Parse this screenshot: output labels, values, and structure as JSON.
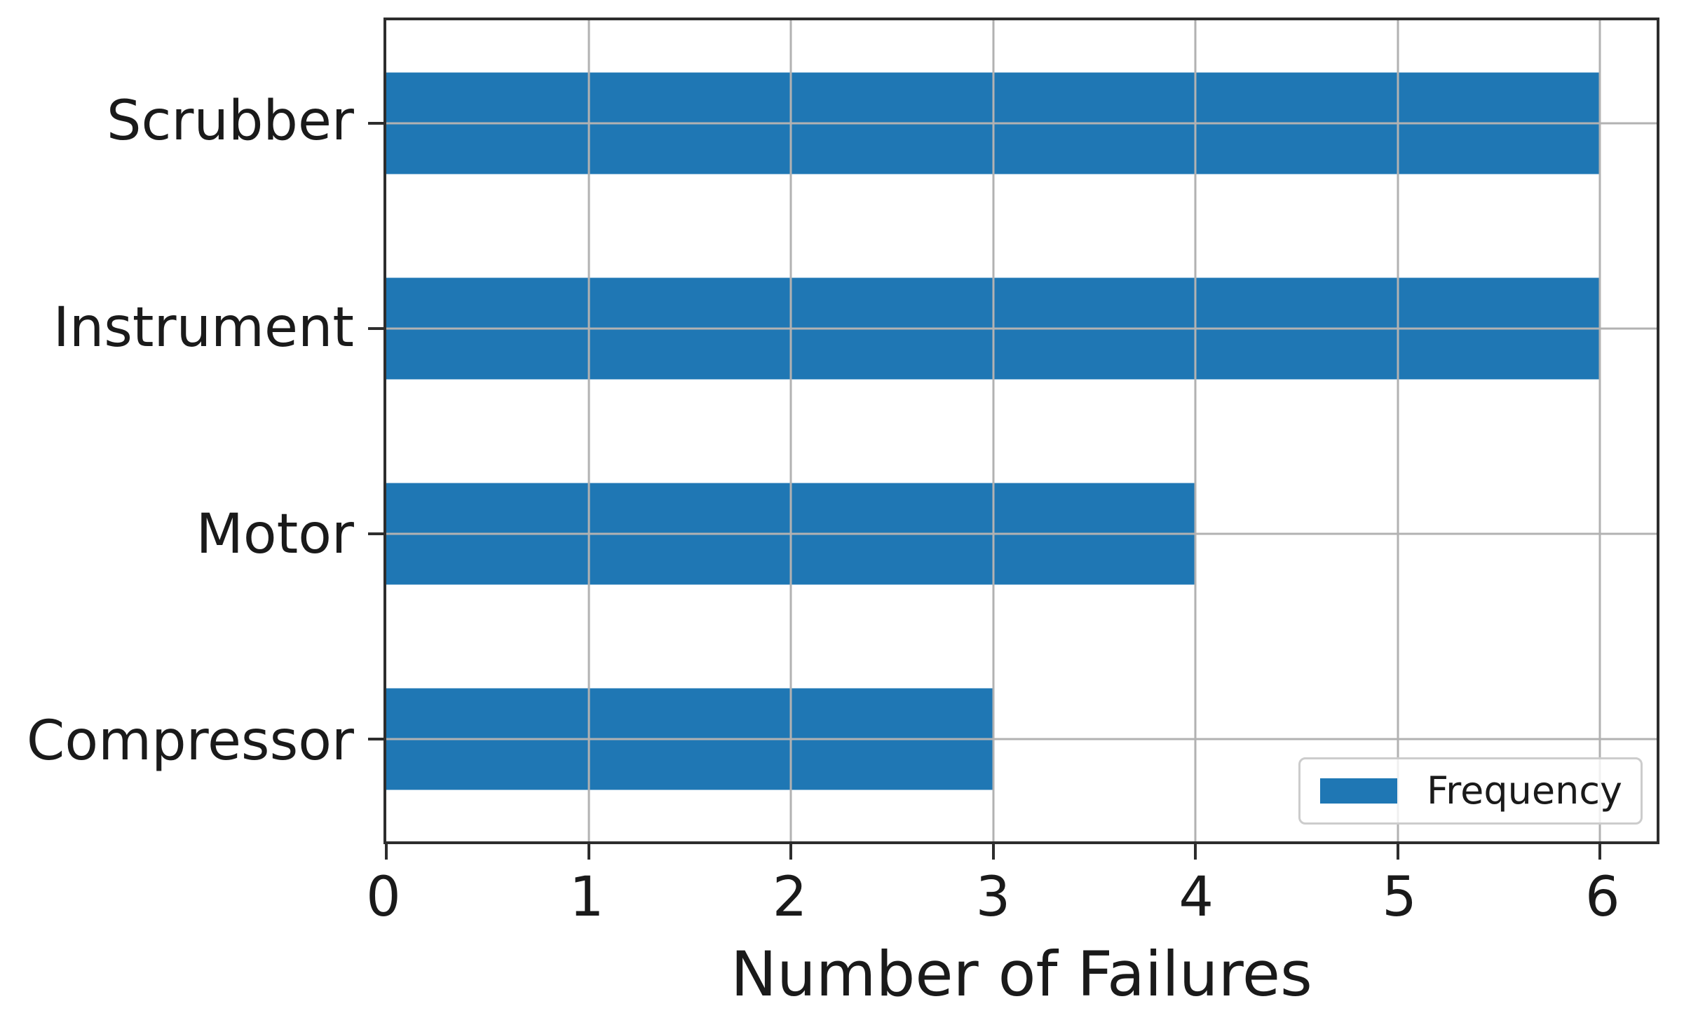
{
  "figure": {
    "background": "#ffffff",
    "spine_color": "#2d2d2d",
    "text_color": "#1a1a1a"
  },
  "chart_data": {
    "type": "bar",
    "orientation": "horizontal",
    "title": "",
    "xlabel": "Number of Failures",
    "ylabel": "",
    "categories": [
      "Scrubber",
      "Instrument",
      "Motor",
      "Compressor"
    ],
    "values": [
      6,
      6,
      4,
      3
    ],
    "series": [
      {
        "name": "Frequency",
        "color": "#1f77b4"
      }
    ],
    "x_ticks": [
      "0",
      "1",
      "2",
      "3",
      "4",
      "5",
      "6"
    ],
    "xlim": [
      0,
      6.28
    ],
    "ylim_categories": [
      -0.5,
      3.5
    ],
    "grid": true,
    "grid_color": "#b2b2b2",
    "legend": {
      "position": "lower right",
      "entries": [
        {
          "label": "Frequency",
          "color": "#1f77b4"
        }
      ]
    }
  }
}
